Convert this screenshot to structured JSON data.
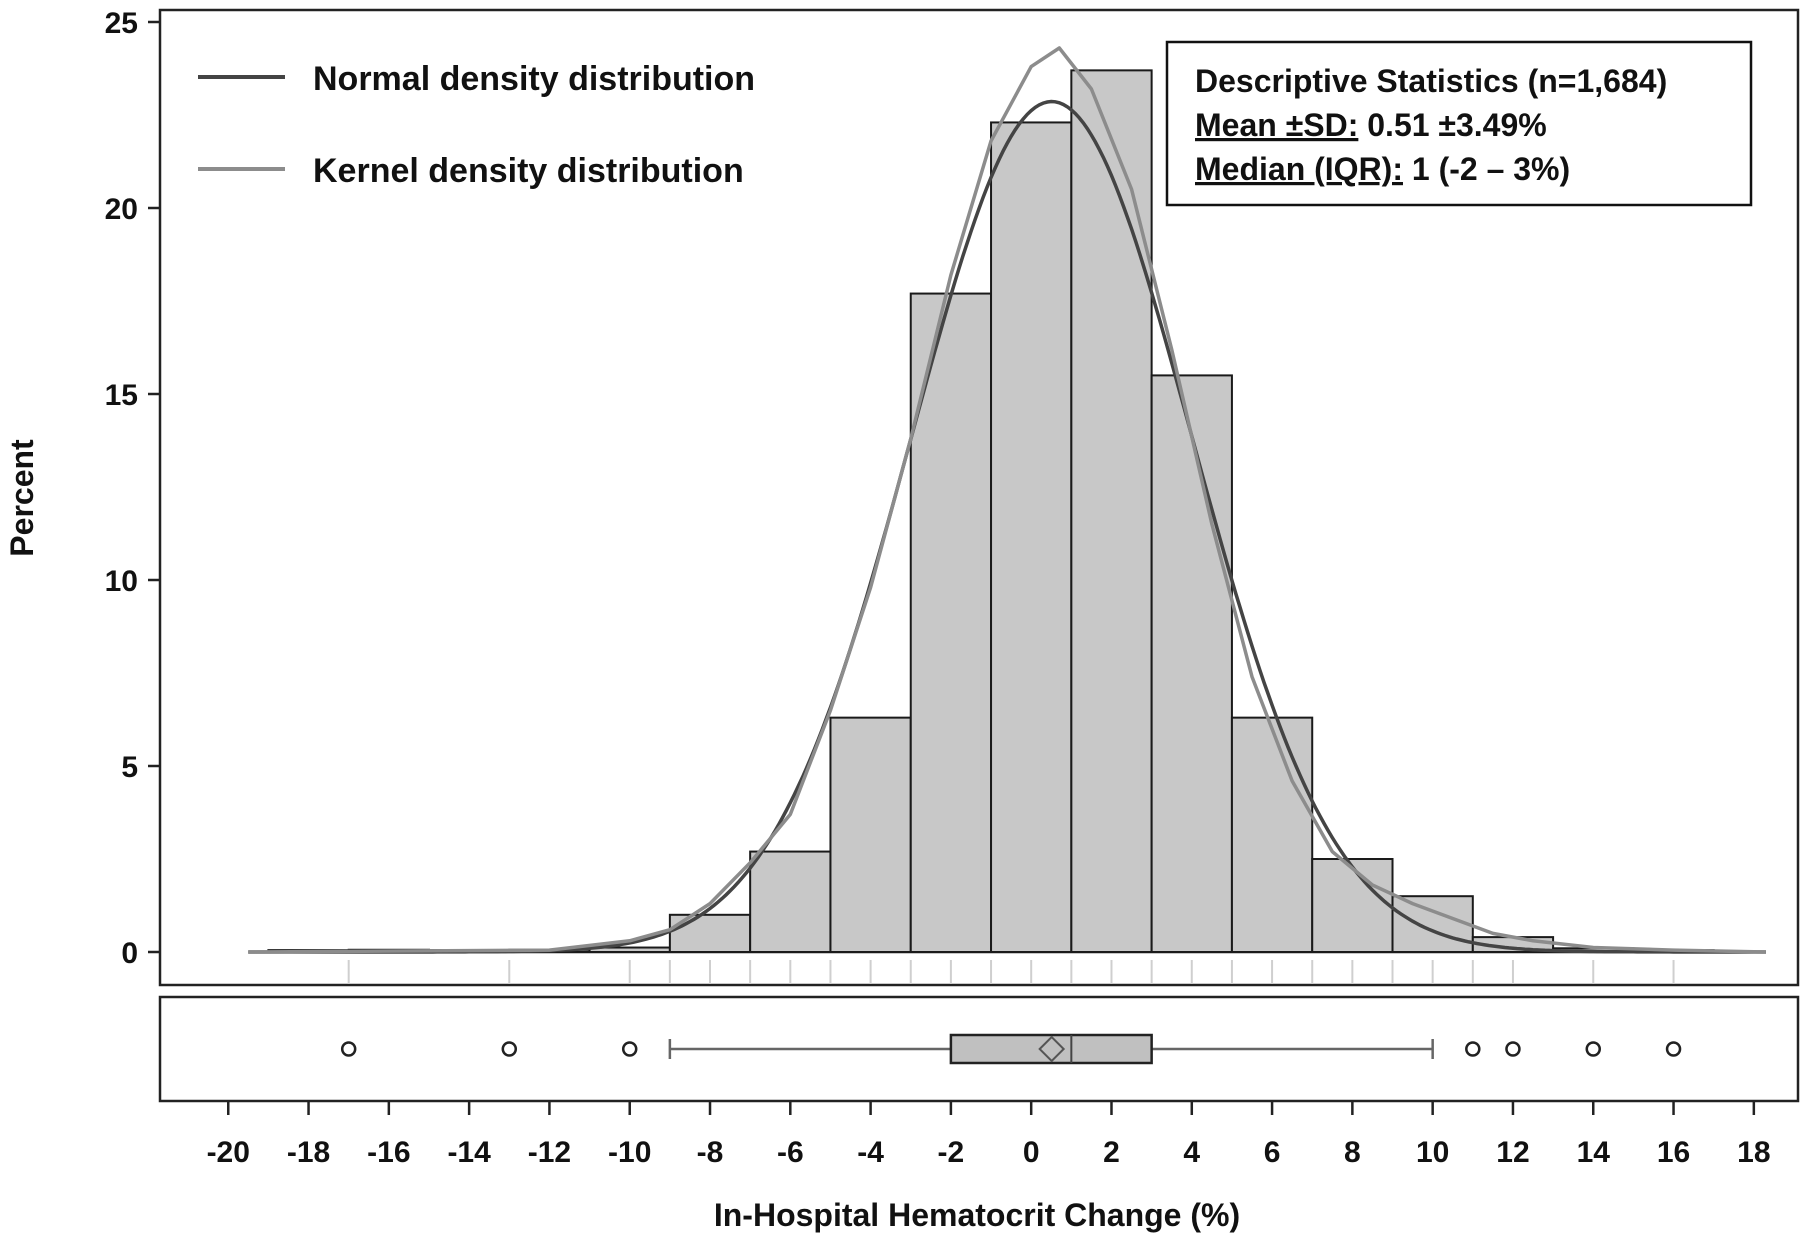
{
  "chart_data": {
    "type": "histogram",
    "title": "",
    "xlabel": "In-Hospital Hematocrit Change (%)",
    "ylabel": "Percent",
    "xlim": [
      -21.7,
      19.1
    ],
    "ylim": [
      0,
      25.3
    ],
    "x_ticks": [
      -20,
      -18,
      -16,
      -14,
      -12,
      -10,
      -8,
      -6,
      -4,
      -2,
      0,
      2,
      4,
      6,
      8,
      10,
      12,
      14,
      16,
      18
    ],
    "y_ticks": [
      0,
      5,
      10,
      15,
      20,
      25
    ],
    "bins": [
      {
        "from": -19,
        "to": -17,
        "value": 0.05
      },
      {
        "from": -17,
        "to": -15,
        "value": 0.06
      },
      {
        "from": -15,
        "to": -13,
        "value": 0.05
      },
      {
        "from": -13,
        "to": -11,
        "value": 0.06
      },
      {
        "from": -11,
        "to": -9,
        "value": 0.12
      },
      {
        "from": -9,
        "to": -7,
        "value": 1.0
      },
      {
        "from": -7,
        "to": -5,
        "value": 2.7
      },
      {
        "from": -5,
        "to": -3,
        "value": 6.3
      },
      {
        "from": -3,
        "to": -1,
        "value": 17.7
      },
      {
        "from": -1,
        "to": 1,
        "value": 22.3
      },
      {
        "from": 1,
        "to": 3,
        "value": 23.7
      },
      {
        "from": 3,
        "to": 5,
        "value": 15.5
      },
      {
        "from": 5,
        "to": 7,
        "value": 6.3
      },
      {
        "from": 7,
        "to": 9,
        "value": 2.5
      },
      {
        "from": 9,
        "to": 11,
        "value": 1.5
      },
      {
        "from": 11,
        "to": 13,
        "value": 0.4
      },
      {
        "from": 13,
        "to": 15,
        "value": 0.1
      },
      {
        "from": 15,
        "to": 17,
        "value": 0.05
      }
    ],
    "series": [
      {
        "name": "Normal density distribution",
        "color": "#444444"
      },
      {
        "name": "Kernel density distribution",
        "color": "#8c8c8c"
      }
    ],
    "normal_curve": {
      "mean": 0.51,
      "sd": 3.49
    },
    "kernel_curve_points": [
      [
        -19.5,
        0.0
      ],
      [
        -12,
        0.05
      ],
      [
        -10,
        0.3
      ],
      [
        -9,
        0.6
      ],
      [
        -8,
        1.3
      ],
      [
        -7,
        2.4
      ],
      [
        -6,
        3.7
      ],
      [
        -5,
        6.5
      ],
      [
        -4,
        9.8
      ],
      [
        -3,
        13.8
      ],
      [
        -2,
        18.2
      ],
      [
        -1,
        21.8
      ],
      [
        0,
        23.8
      ],
      [
        0.7,
        24.3
      ],
      [
        1.5,
        23.2
      ],
      [
        2.5,
        20.5
      ],
      [
        3.5,
        16.2
      ],
      [
        4.5,
        11.5
      ],
      [
        5.5,
        7.4
      ],
      [
        6.5,
        4.6
      ],
      [
        7.5,
        2.7
      ],
      [
        8.5,
        1.8
      ],
      [
        9.5,
        1.3
      ],
      [
        10.5,
        0.9
      ],
      [
        11.5,
        0.5
      ],
      [
        12.5,
        0.3
      ],
      [
        14,
        0.12
      ],
      [
        16,
        0.05
      ],
      [
        18.3,
        0.0
      ]
    ],
    "rug_values": [
      -17,
      -13,
      -10,
      -9,
      -8,
      -7,
      -6,
      -5,
      -4,
      -3,
      -2,
      -1,
      0,
      1,
      2,
      3,
      4,
      5,
      6,
      7,
      8,
      9,
      10,
      11,
      12,
      14,
      16
    ],
    "boxplot": {
      "min_whisker": -9,
      "q1": -2,
      "median": 1,
      "mean": 0.51,
      "q3": 3,
      "max_whisker": 10,
      "outliers": [
        -17,
        -13,
        -10,
        11,
        12,
        14,
        16
      ]
    },
    "stats_box": {
      "line1": "Descriptive Statistics (n=1,684)",
      "line2_label": "Mean ±SD:",
      "line2_value": " 0.51 ±3.49%",
      "line3_label": "Median (IQR):",
      "line3_value": " 1 (-2 – 3%)"
    },
    "legend_position": "top-left",
    "grid": false
  }
}
